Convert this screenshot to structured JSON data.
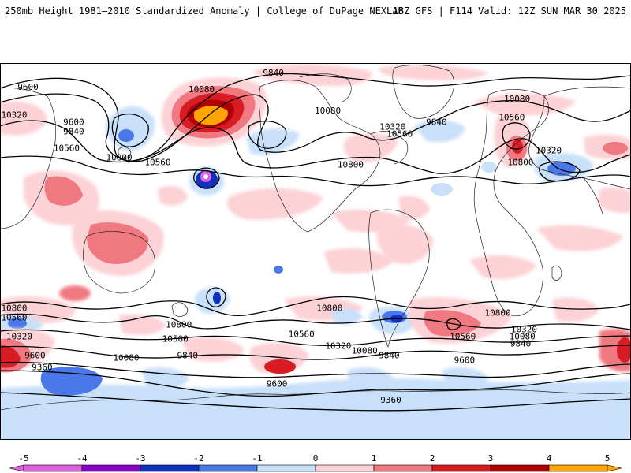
{
  "header": {
    "title_left": "250mb Height 1981–2010 Standardized Anomaly | College of DuPage NEXLAB",
    "title_right": "18Z GFS | F114 Valid: 12Z SUN MAR 30 2025"
  },
  "colors": {
    "neg5": "#e060e0",
    "neg4": "#8a00c8",
    "neg3": "#1030c0",
    "neg2": "#4a78e8",
    "neg1": "#c8e0fa",
    "pos1": "#fcd2d6",
    "pos2": "#f07880",
    "pos3": "#d81c24",
    "pos4": "#b00000",
    "pos5": "#ffa500"
  },
  "contour_labels": [
    {
      "text": "9600",
      "lon": -164,
      "lat": 72
    },
    {
      "text": "10320",
      "lon": -178,
      "lat": 60
    },
    {
      "text": "9600",
      "lon": -138,
      "lat": 57
    },
    {
      "text": "9840",
      "lon": -138,
      "lat": 53
    },
    {
      "text": "10560",
      "lon": -142,
      "lat": 46
    },
    {
      "text": "10800",
      "lon": -112,
      "lat": 42
    },
    {
      "text": "10560",
      "lon": -90,
      "lat": 40
    },
    {
      "text": "9840",
      "lon": -24,
      "lat": 78
    },
    {
      "text": "10080",
      "lon": -65,
      "lat": 71
    },
    {
      "text": "10080",
      "lon": 7,
      "lat": 62
    },
    {
      "text": "10320",
      "lon": 44,
      "lat": 55
    },
    {
      "text": "10560",
      "lon": 48,
      "lat": 52
    },
    {
      "text": "9840",
      "lon": 69,
      "lat": 57
    },
    {
      "text": "10800",
      "lon": 20,
      "lat": 39
    },
    {
      "text": "10080",
      "lon": 115,
      "lat": 67
    },
    {
      "text": "10560",
      "lon": 112,
      "lat": 59
    },
    {
      "text": "10320",
      "lon": 133,
      "lat": 45
    },
    {
      "text": "10800",
      "lon": 117,
      "lat": 40
    },
    {
      "text": "10800",
      "lon": -178,
      "lat": -22
    },
    {
      "text": "10560",
      "lon": -174,
      "lat": -26
    },
    {
      "text": "10320",
      "lon": -169,
      "lat": -34
    },
    {
      "text": "9600",
      "lon": -160,
      "lat": -42
    },
    {
      "text": "9360",
      "lon": -156,
      "lat": -47
    },
    {
      "text": "10080",
      "lon": -108,
      "lat": -43
    },
    {
      "text": "9840",
      "lon": -73,
      "lat": -42
    },
    {
      "text": "10800",
      "lon": -78,
      "lat": -29
    },
    {
      "text": "10560",
      "lon": -80,
      "lat": -35
    },
    {
      "text": "10800",
      "lon": 8,
      "lat": -22
    },
    {
      "text": "10560",
      "lon": -8,
      "lat": -33
    },
    {
      "text": "10320",
      "lon": 13,
      "lat": -38
    },
    {
      "text": "10080",
      "lon": 28,
      "lat": -40
    },
    {
      "text": "9840",
      "lon": 42,
      "lat": -42
    },
    {
      "text": "9600",
      "lon": -22,
      "lat": -54
    },
    {
      "text": "10800",
      "lon": 104,
      "lat": -24
    },
    {
      "text": "10560",
      "lon": 84,
      "lat": -34
    },
    {
      "text": "10320",
      "lon": 119,
      "lat": -31
    },
    {
      "text": "10080",
      "lon": 118,
      "lat": -34
    },
    {
      "text": "9840",
      "lon": 117,
      "lat": -37
    },
    {
      "text": "9600",
      "lon": 85,
      "lat": -44
    },
    {
      "text": "9360",
      "lon": 43,
      "lat": -61
    }
  ],
  "colorbar": {
    "ticks": [
      "-5",
      "-4",
      "-3",
      "-2",
      "-1",
      "0",
      "1",
      "2",
      "3",
      "4",
      "5"
    ]
  }
}
